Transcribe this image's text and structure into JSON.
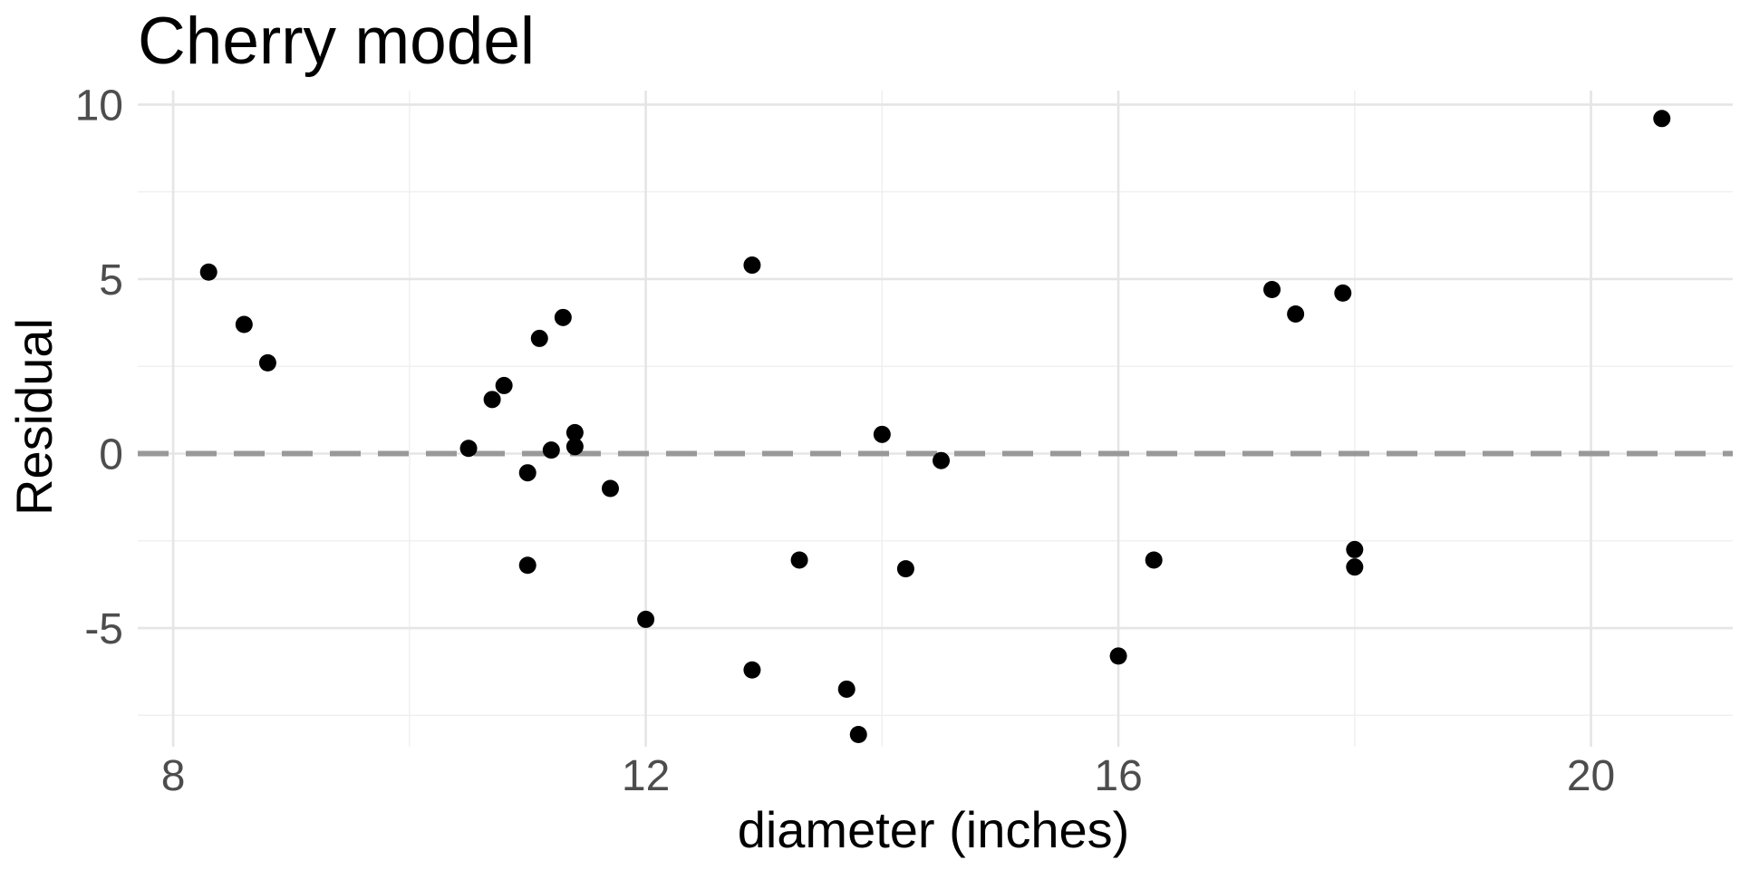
{
  "chart_data": {
    "type": "scatter",
    "title": "Cherry model",
    "xlabel": "diameter (inches)",
    "ylabel": "Residual",
    "xlim": [
      7.7,
      21.2
    ],
    "ylim": [
      -8.4,
      10.4
    ],
    "x_ticks": [
      8,
      12,
      16,
      20
    ],
    "x_tick_labels": [
      "8",
      "12",
      "16",
      "20"
    ],
    "x_minor_ticks": [
      10,
      14,
      18
    ],
    "y_ticks": [
      -5,
      0,
      5,
      10
    ],
    "y_tick_labels": [
      "-5",
      "0",
      "5",
      "10"
    ],
    "y_minor_ticks": [
      -7.5,
      -2.5,
      2.5,
      7.5
    ],
    "grid": true,
    "reference_line": {
      "y": 0,
      "style": "dashed",
      "color": "#999999"
    },
    "point_color": "#000000",
    "series": [
      {
        "x": [
          8.3,
          8.6,
          8.8,
          10.5,
          10.7,
          10.8,
          11.0,
          11.0,
          11.1,
          11.2,
          11.3,
          11.4,
          11.4,
          11.7,
          12.0,
          12.9,
          12.9,
          13.3,
          13.7,
          13.8,
          14.0,
          14.2,
          14.5,
          16.0,
          16.3,
          17.3,
          17.5,
          17.9,
          18.0,
          18.0,
          20.6
        ],
        "y": [
          5.2,
          3.7,
          2.6,
          0.15,
          1.55,
          1.95,
          -0.55,
          -3.2,
          3.3,
          0.1,
          3.9,
          0.6,
          0.2,
          -1.0,
          -4.75,
          5.4,
          -6.2,
          -3.05,
          -6.75,
          -8.05,
          0.55,
          -3.3,
          -0.2,
          -5.8,
          -3.05,
          4.7,
          4.0,
          4.6,
          -2.75,
          -3.25,
          9.6
        ]
      }
    ]
  }
}
